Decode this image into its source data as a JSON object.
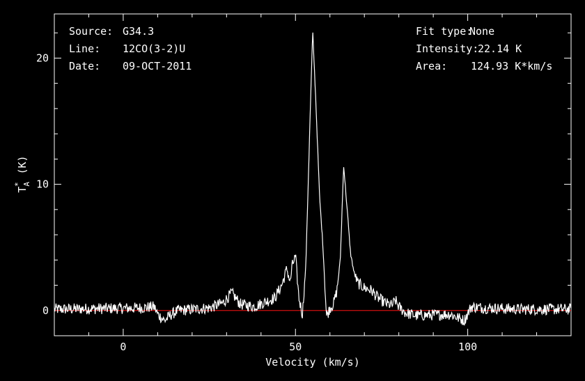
{
  "header_left": {
    "source_key": "Source:",
    "source_val": "G34.3",
    "line_key": "Line:",
    "line_val": "12CO(3-2)U",
    "date_key": "Date:",
    "date_val": "09-OCT-2011"
  },
  "header_right": {
    "fit_key": "Fit type:",
    "fit_val": "None",
    "intensity_key": "Intensity:",
    "intensity_val": "22.14 K",
    "area_key": "Area:",
    "area_val": "124.93 K*km/s"
  },
  "colors": {
    "background": "#000000",
    "foreground": "#ffffff",
    "baseline": "#d01010"
  },
  "chart_data": {
    "type": "line",
    "title": "",
    "xlabel": "Velocity (km/s)",
    "ylabel": "T_A^* (K)",
    "xlim": [
      -20,
      130
    ],
    "ylim": [
      -2,
      23.5
    ],
    "xticks": [
      0,
      50,
      100
    ],
    "xtick_labels": [
      "0",
      "50",
      "100"
    ],
    "yticks": [
      0,
      10,
      20
    ],
    "ytick_labels": [
      "0",
      "10",
      "20"
    ],
    "grid": false,
    "baseline": 0,
    "series": [
      {
        "values_x": [
          -20,
          5,
          9,
          10,
          12,
          14,
          16,
          25,
          29,
          31.5,
          34,
          38,
          44,
          46,
          47.5,
          48.5,
          49,
          50,
          51,
          52,
          53,
          54,
          55,
          56,
          57,
          58,
          59,
          60,
          61,
          62,
          63,
          64,
          65,
          66,
          67,
          68,
          70,
          72,
          74,
          76,
          78,
          79,
          80,
          82,
          85,
          95,
          99,
          101,
          105,
          115,
          125,
          130
        ],
        "values_y": [
          0.1,
          0.2,
          0.3,
          -0.3,
          -0.8,
          -0.3,
          0,
          0.2,
          0.6,
          1.4,
          0.5,
          0.3,
          1.0,
          2.0,
          3.3,
          2.2,
          3.5,
          4.3,
          1.0,
          -0.3,
          3.5,
          13.0,
          22.14,
          16.0,
          9.0,
          5.0,
          -0.5,
          0.2,
          0.5,
          1.5,
          4.0,
          11.5,
          8.0,
          4.5,
          3.0,
          2.2,
          1.8,
          1.6,
          1.0,
          0.6,
          0.4,
          0.8,
          0.3,
          -0.2,
          -0.4,
          -0.3,
          -0.8,
          0.3,
          0.2,
          0.1,
          0.1,
          0.1
        ]
      }
    ]
  }
}
